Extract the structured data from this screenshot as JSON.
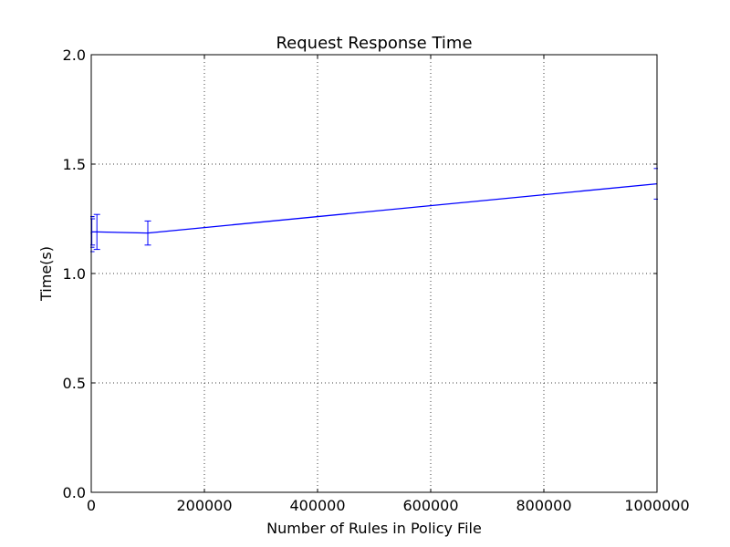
{
  "chart_data": {
    "type": "line",
    "title": "Request Response Time",
    "xlabel": "Number of Rules in Policy File",
    "ylabel": "Time(s)",
    "xlim": [
      0,
      1000000
    ],
    "ylim": [
      0.0,
      2.0
    ],
    "xticks": [
      "0",
      "200000",
      "400000",
      "600000",
      "800000",
      "1000000"
    ],
    "yticks": [
      "0.0",
      "0.5",
      "1.0",
      "1.5",
      "2.0"
    ],
    "grid": true,
    "color": "#0000ff",
    "series": [
      {
        "x": [
          10,
          100,
          1000,
          10000,
          100000,
          1000000
        ],
        "y": [
          1.19,
          1.18,
          1.19,
          1.19,
          1.185,
          1.41
        ],
        "yerr": [
          0.07,
          0.08,
          0.06,
          0.08,
          0.055,
          0.07
        ]
      }
    ]
  }
}
